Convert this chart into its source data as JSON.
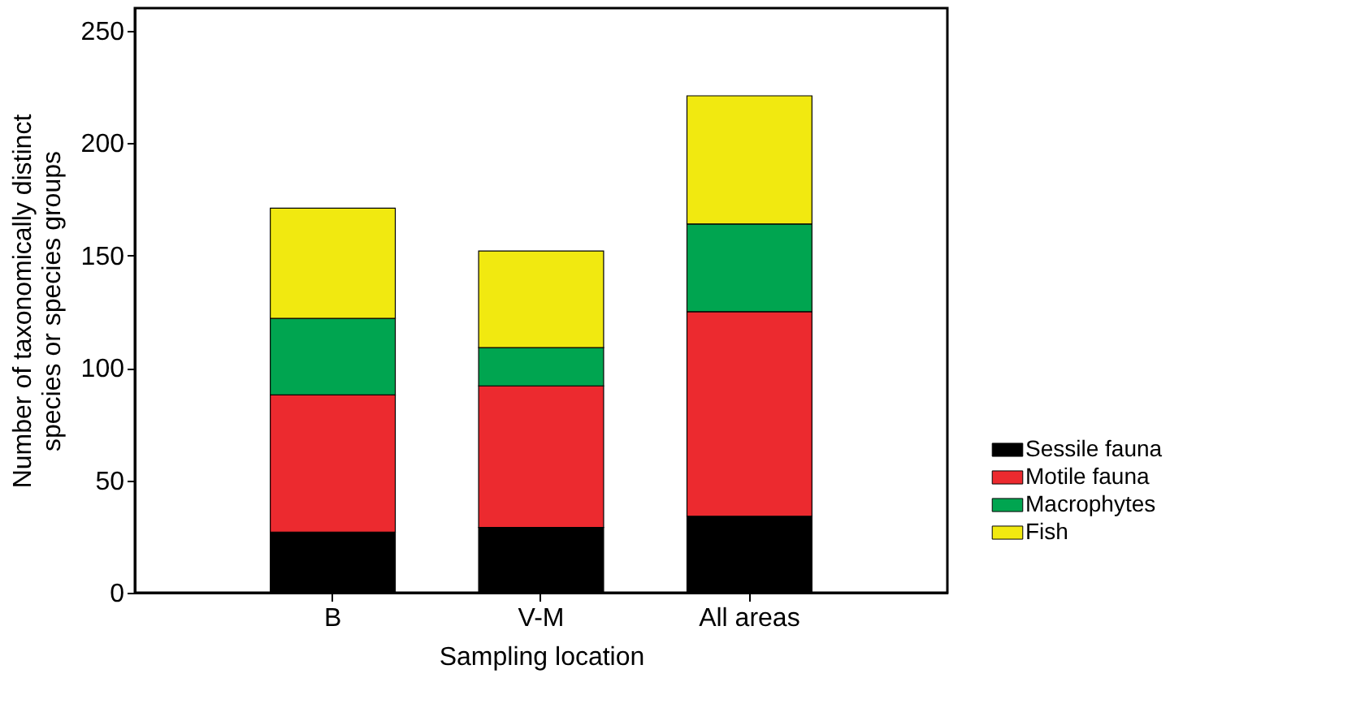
{
  "chart_data": {
    "type": "bar",
    "stacked": true,
    "xlabel": "Sampling location",
    "ylabel": "Number of taxonomically distinct\nspecies or species groups",
    "categories": [
      "B",
      "V-M",
      "All areas"
    ],
    "series": [
      {
        "name": "Sessile fauna",
        "color": "#000000",
        "values": [
          27,
          29,
          34
        ]
      },
      {
        "name": "Motile fauna",
        "color": "#ec2a2f",
        "values": [
          61,
          63,
          91
        ]
      },
      {
        "name": "Macrophytes",
        "color": "#00a550",
        "values": [
          34,
          17,
          39
        ]
      },
      {
        "name": "Fish",
        "color": "#f1e910",
        "values": [
          49,
          43,
          57
        ]
      }
    ],
    "ylim": [
      0,
      260
    ],
    "yticks": [
      0,
      50,
      100,
      150,
      200,
      250
    ],
    "grid": false,
    "legend": "bottom right"
  }
}
